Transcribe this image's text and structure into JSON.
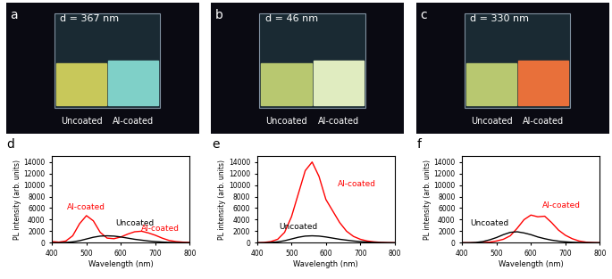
{
  "photos": [
    {
      "panel": "a",
      "thickness": "d = 367 nm",
      "labels": [
        "Uncoated",
        "Al-coated"
      ]
    },
    {
      "panel": "b",
      "thickness": "d = 46 nm",
      "labels": [
        "Uncoated",
        "Al-coated"
      ]
    },
    {
      "panel": "c",
      "thickness": "d = 330 nm",
      "labels": [
        "Uncoated",
        "Al-coated"
      ]
    }
  ],
  "chart_data": [
    {
      "type": "line",
      "title": "d",
      "x_label": "Wavelength (nm)",
      "y_label": "PL intensity (arb. units)",
      "x": [
        400,
        420,
        440,
        460,
        480,
        500,
        520,
        540,
        560,
        580,
        600,
        620,
        640,
        660,
        680,
        700,
        720,
        740,
        760,
        780,
        800
      ],
      "series": [
        {
          "color": "#ff0000",
          "values": [
            200,
            100,
            300,
            1200,
            3300,
            4700,
            3800,
            1800,
            800,
            700,
            1000,
            1500,
            1900,
            2000,
            1700,
            1300,
            800,
            400,
            200,
            100,
            50
          ]
        },
        {
          "color": "#000000",
          "values": [
            0,
            0,
            50,
            150,
            350,
            650,
            950,
            1150,
            1200,
            1150,
            1000,
            800,
            600,
            450,
            300,
            200,
            120,
            60,
            30,
            10,
            0
          ]
        }
      ],
      "annotations": [
        {
          "text": "Al-coated",
          "x": 500,
          "y": 5400,
          "color": "#ff0000"
        },
        {
          "text": "Uncoated",
          "x": 640,
          "y": 2700,
          "color": "#000000"
        },
        {
          "text": "Al-coated",
          "x": 715,
          "y": 1700,
          "color": "#ff0000"
        }
      ],
      "xlim": [
        400,
        800
      ],
      "xticks": [
        400,
        500,
        600,
        700,
        800
      ],
      "ylim": [
        0,
        15000
      ],
      "yticks": [
        0,
        2000,
        4000,
        6000,
        8000,
        10000,
        12000,
        14000
      ]
    },
    {
      "type": "line",
      "title": "e",
      "x_label": "Wavelength (nm)",
      "y_label": "PL intensity (arb. units)",
      "x": [
        400,
        420,
        440,
        460,
        480,
        500,
        520,
        540,
        560,
        580,
        600,
        620,
        640,
        660,
        680,
        700,
        720,
        740,
        760,
        780,
        800
      ],
      "series": [
        {
          "color": "#ff0000",
          "values": [
            0,
            50,
            200,
            600,
            1800,
            4500,
            8500,
            12500,
            14000,
            11500,
            7500,
            5500,
            3500,
            2000,
            1100,
            600,
            300,
            150,
            60,
            20,
            0
          ]
        },
        {
          "color": "#000000",
          "values": [
            0,
            0,
            50,
            150,
            350,
            650,
            950,
            1150,
            1200,
            1150,
            1000,
            800,
            600,
            450,
            300,
            200,
            120,
            60,
            30,
            10,
            0
          ]
        }
      ],
      "annotations": [
        {
          "text": "Al-coated",
          "x": 690,
          "y": 9500,
          "color": "#ff0000"
        },
        {
          "text": "Uncoated",
          "x": 520,
          "y": 2000,
          "color": "#000000"
        }
      ],
      "xlim": [
        400,
        800
      ],
      "xticks": [
        400,
        500,
        600,
        700,
        800
      ],
      "ylim": [
        0,
        15000
      ],
      "yticks": [
        0,
        2000,
        4000,
        6000,
        8000,
        10000,
        12000,
        14000
      ]
    },
    {
      "type": "line",
      "title": "f",
      "x_label": "Wavelength (nm)",
      "y_label": "PL intensity (arb. units)",
      "x": [
        400,
        420,
        440,
        460,
        480,
        500,
        520,
        540,
        560,
        580,
        600,
        620,
        640,
        660,
        680,
        700,
        720,
        740,
        760,
        780,
        800
      ],
      "series": [
        {
          "color": "#ff0000",
          "values": [
            0,
            0,
            0,
            30,
            100,
            300,
            600,
            1200,
            2500,
            4000,
            4800,
            4500,
            4600,
            3500,
            2200,
            1300,
            700,
            300,
            100,
            30,
            0
          ]
        },
        {
          "color": "#000000",
          "values": [
            0,
            0,
            50,
            200,
            500,
            900,
            1400,
            1800,
            1900,
            1700,
            1400,
            1000,
            700,
            450,
            280,
            160,
            80,
            40,
            20,
            10,
            0
          ]
        }
      ],
      "annotations": [
        {
          "text": "Al-coated",
          "x": 690,
          "y": 5800,
          "color": "#ff0000"
        },
        {
          "text": "Uncoated",
          "x": 480,
          "y": 2600,
          "color": "#000000"
        }
      ],
      "xlim": [
        400,
        800
      ],
      "xticks": [
        400,
        500,
        600,
        700,
        800
      ],
      "ylim": [
        0,
        15000
      ],
      "yticks": [
        0,
        2000,
        4000,
        6000,
        8000,
        10000,
        12000,
        14000
      ]
    }
  ]
}
